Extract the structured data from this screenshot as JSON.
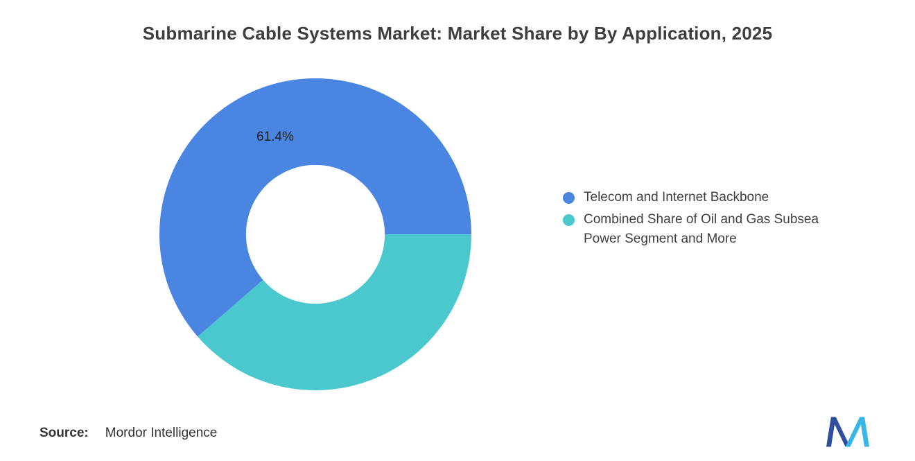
{
  "title": "Submarine Cable Systems Market: Market Share by By Application, 2025",
  "chart_data": {
    "type": "pie",
    "subtype": "donut",
    "title": "Submarine Cable Systems Market: Market Share by By Application, 2025",
    "categories": [
      "Telecom and Internet Backbone",
      "Combined Share of Oil and Gas Subsea Power Segment and More"
    ],
    "values": [
      61.4,
      38.6
    ],
    "colors": [
      "#4a86e1",
      "#4ac8cd"
    ],
    "slice_labels": [
      "61.4%",
      ""
    ],
    "start_angle_deg": 229,
    "donut_hole_ratio": 0.445,
    "legend_position": "right",
    "grid": false
  },
  "legend": {
    "items": [
      {
        "label": "Telecom and Internet Backbone",
        "color": "#4a86e1"
      },
      {
        "label": "Combined Share of Oil and Gas Subsea Power Segment and More",
        "color": "#4ac8cd"
      }
    ]
  },
  "source": {
    "label": "Source:",
    "value": "Mordor Intelligence"
  },
  "logo": {
    "name": "mordor-intelligence-logo",
    "color_dark": "#2d4f9e",
    "color_light": "#38b6e6"
  }
}
